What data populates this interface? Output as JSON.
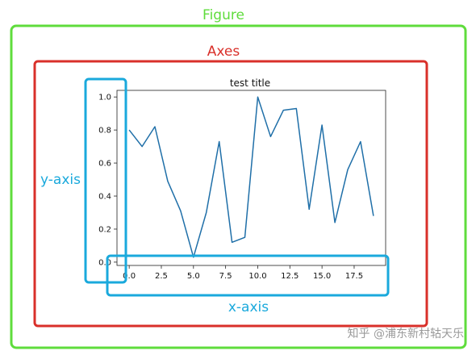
{
  "annotations": {
    "figure_label": "Figure",
    "axes_label": "Axes",
    "yaxis_label": "y-axis",
    "xaxis_label": "x-axis",
    "figure_color": "#5fdc3c",
    "axes_color": "#d9302a",
    "axis_color": "#1aa9dc"
  },
  "watermark": "知乎 @浦东新村轱天乐",
  "chart_data": {
    "type": "line",
    "title": "test title",
    "xlabel": "",
    "ylabel": "",
    "xlim": [
      -0.95,
      19.95
    ],
    "ylim": [
      -0.02,
      1.04
    ],
    "x_ticks": [
      0.0,
      2.5,
      5.0,
      7.5,
      10.0,
      12.5,
      15.0,
      17.5
    ],
    "x_tick_labels": [
      "0.0",
      "2.5",
      "5.0",
      "7.5",
      "10.0",
      "12.5",
      "15.0",
      "17.5"
    ],
    "y_ticks": [
      0.0,
      0.2,
      0.4,
      0.6,
      0.8,
      1.0
    ],
    "y_tick_labels": [
      "0.0",
      "0.2",
      "0.4",
      "0.6",
      "0.8",
      "1.0"
    ],
    "grid": false,
    "series": [
      {
        "color": "#1f6fa8",
        "x": [
          0,
          1,
          2,
          3,
          4,
          5,
          6,
          7,
          8,
          9,
          10,
          11,
          12,
          13,
          14,
          15,
          16,
          17,
          18,
          19
        ],
        "y": [
          0.8,
          0.7,
          0.82,
          0.49,
          0.31,
          0.03,
          0.3,
          0.73,
          0.12,
          0.15,
          1.0,
          0.76,
          0.92,
          0.93,
          0.32,
          0.83,
          0.24,
          0.56,
          0.73,
          0.28
        ]
      }
    ]
  }
}
